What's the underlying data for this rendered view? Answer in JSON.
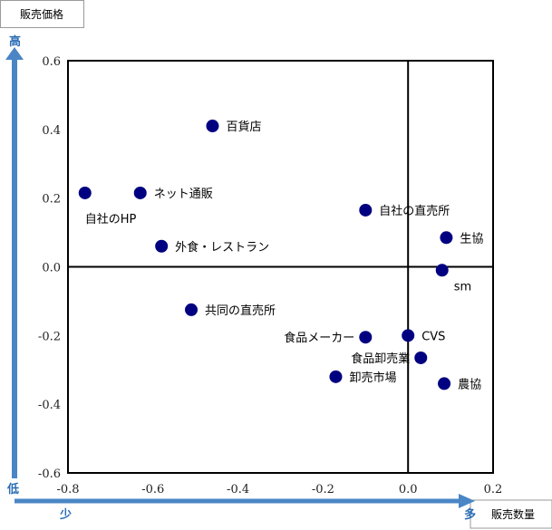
{
  "chart_data": {
    "type": "scatter",
    "xlim": [
      -0.8,
      0.2
    ],
    "ylim": [
      -0.6,
      0.6
    ],
    "x_ticks": [
      "-0.8",
      "-0.6",
      "-0.4",
      "-0.2",
      "0.0",
      "0.2"
    ],
    "y_ticks": [
      "0.6",
      "0.4",
      "0.2",
      "0.0",
      "-0.2",
      "-0.4",
      "-0.6"
    ],
    "grid": false,
    "quadrant_lines": {
      "x": 0.0,
      "y": 0.0
    },
    "marker_color": "#000080",
    "axis_arrow_color": "#4a86c5",
    "y_axis_box_label": "販売価格",
    "x_axis_box_label": "販売数量",
    "y_high_label": "高",
    "y_low_label": "低",
    "x_low_label": "少",
    "x_high_label": "多",
    "points": [
      {
        "label": "百貨店",
        "x": -0.46,
        "y": 0.41,
        "label_pos": "right"
      },
      {
        "label": "ネット通販",
        "x": -0.63,
        "y": 0.215,
        "label_pos": "right"
      },
      {
        "label": "自社のHP",
        "x": -0.76,
        "y": 0.215,
        "label_pos": "below"
      },
      {
        "label": "外食・レストラン",
        "x": -0.58,
        "y": 0.06,
        "label_pos": "right"
      },
      {
        "label": "自社の直売所",
        "x": -0.1,
        "y": 0.165,
        "label_pos": "right"
      },
      {
        "label": "生協",
        "x": 0.09,
        "y": 0.085,
        "label_pos": "right"
      },
      {
        "label": "sm",
        "x": 0.08,
        "y": -0.01,
        "label_pos": "below-right"
      },
      {
        "label": "共同の直売所",
        "x": -0.51,
        "y": -0.125,
        "label_pos": "right"
      },
      {
        "label": "食品メーカー",
        "x": -0.1,
        "y": -0.205,
        "label_pos": "left"
      },
      {
        "label": "CVS",
        "x": 0.0,
        "y": -0.2,
        "label_pos": "right"
      },
      {
        "label": "食品卸売業",
        "x": 0.03,
        "y": -0.265,
        "label_pos": "left"
      },
      {
        "label": "卸売市場",
        "x": -0.17,
        "y": -0.32,
        "label_pos": "right"
      },
      {
        "label": "農協",
        "x": 0.085,
        "y": -0.34,
        "label_pos": "right"
      }
    ]
  }
}
